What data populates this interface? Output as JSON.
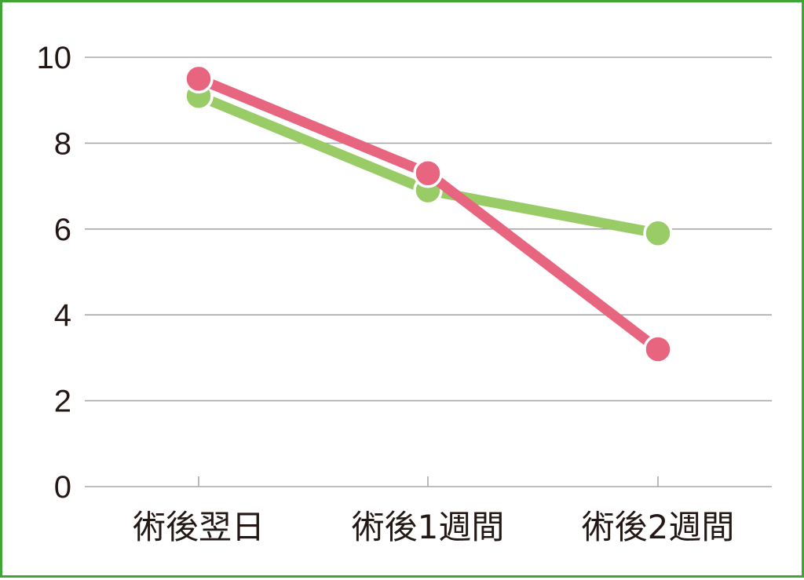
{
  "chart_data": {
    "type": "line",
    "categories": [
      "術後翌日",
      "術後1週間",
      "術後2週間"
    ],
    "series": [
      {
        "values": [
          9.1,
          6.9,
          5.9
        ],
        "color": "#99cc66"
      },
      {
        "values": [
          9.5,
          7.3,
          3.2
        ],
        "color": "#e8657f"
      }
    ],
    "yticks": [
      "0",
      "2",
      "4",
      "6",
      "8",
      "10"
    ],
    "ylim": [
      0,
      10
    ],
    "grid": true,
    "title": "",
    "xlabel": "",
    "ylabel": ""
  },
  "colors": {
    "border": "#3fa535",
    "grid": "#a8a8a8",
    "text": "#231815"
  }
}
